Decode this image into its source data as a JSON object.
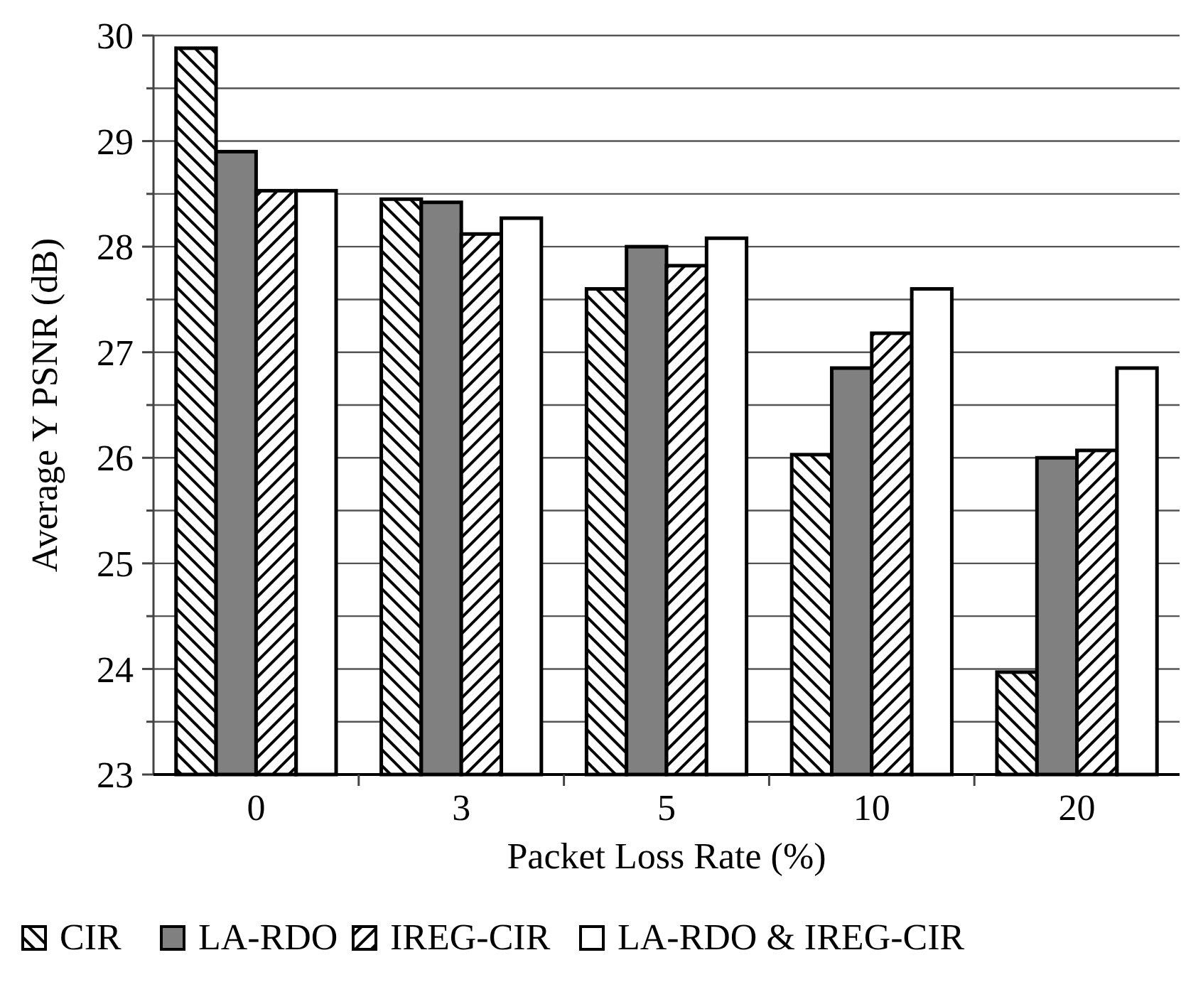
{
  "chart_data": {
    "type": "bar",
    "xlabel": "Packet Loss Rate (%)",
    "ylabel": "Average Y PSNR (dB)",
    "categories": [
      "0",
      "3",
      "5",
      "10",
      "20"
    ],
    "series": [
      {
        "name": "CIR",
        "color": "#000000",
        "values": [
          29.88,
          28.45,
          27.6,
          26.03,
          23.97
        ]
      },
      {
        "name": "LA-RDO",
        "color": "#808080",
        "values": [
          28.9,
          28.42,
          28.0,
          26.85,
          26.0
        ]
      },
      {
        "name": "IREG-CIR",
        "color": "#000000",
        "values": [
          28.53,
          28.12,
          27.82,
          27.18,
          26.07
        ]
      },
      {
        "name": "LA-RDO & IREG-CIR",
        "color": "#ffffff",
        "values": [
          28.53,
          28.27,
          28.08,
          27.6,
          26.85
        ]
      }
    ],
    "ylim": [
      23,
      30
    ],
    "yticks": [
      23,
      24,
      25,
      26,
      27,
      28,
      29,
      30
    ],
    "grid": true,
    "legend": "bottom"
  }
}
